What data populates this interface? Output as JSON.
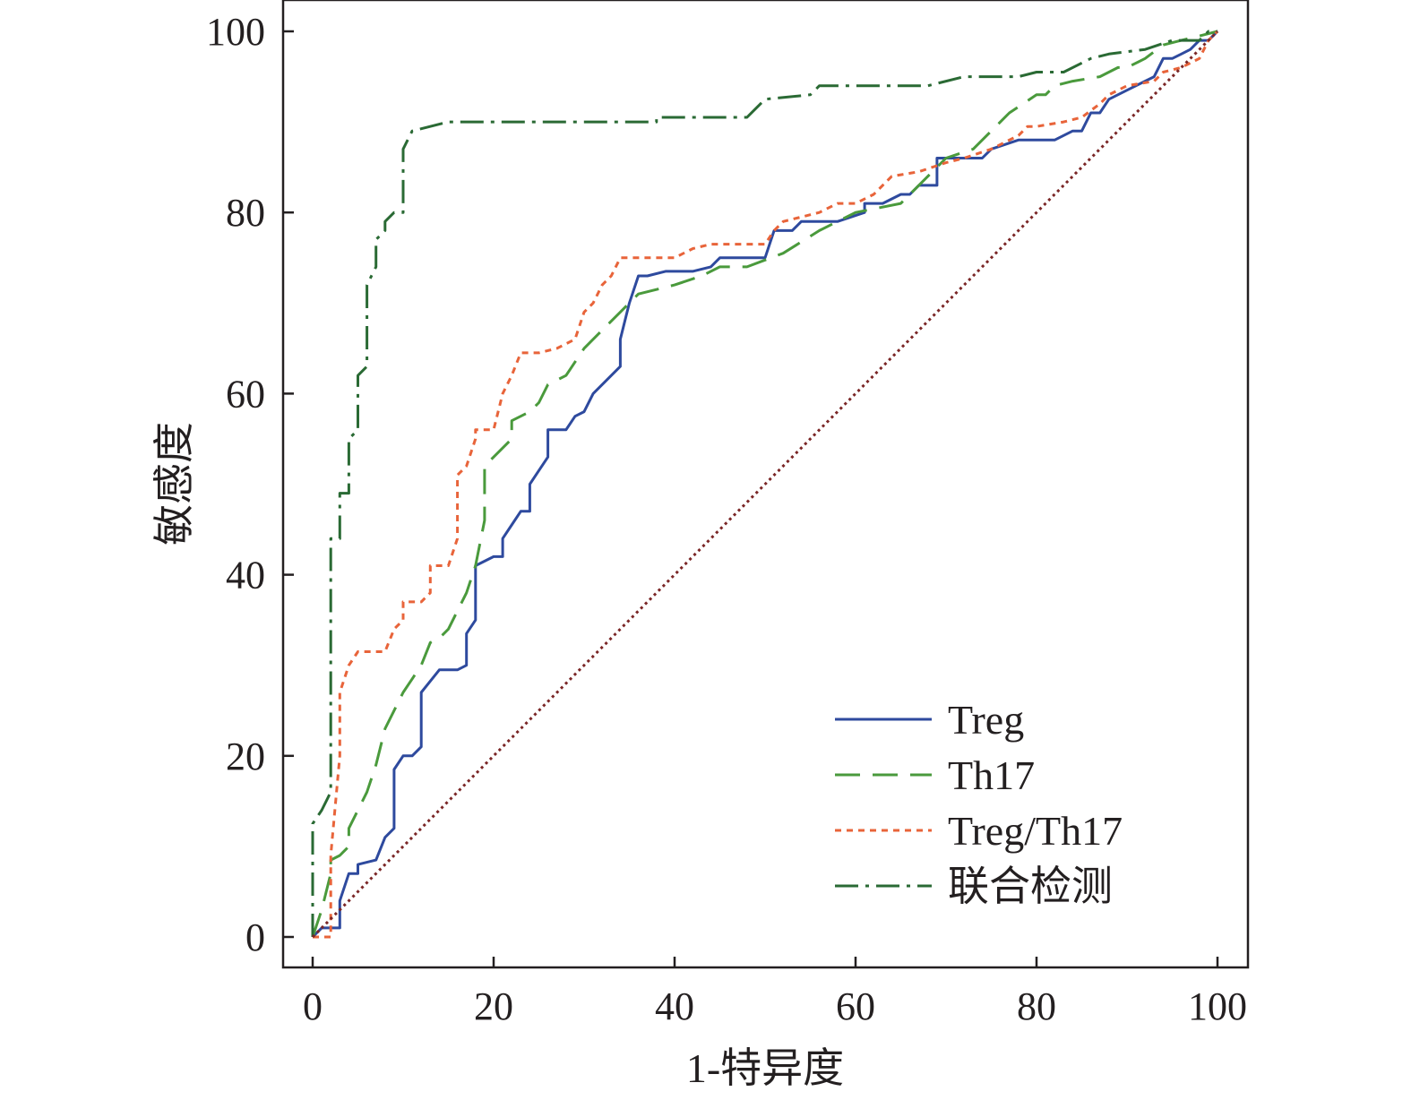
{
  "chart_data": {
    "type": "line",
    "xlabel": "1-特异度",
    "ylabel": "敏感度",
    "xlim": [
      0,
      100
    ],
    "ylim": [
      0,
      100
    ],
    "xticks": [
      0,
      20,
      40,
      60,
      80,
      100
    ],
    "yticks": [
      0,
      20,
      40,
      60,
      80,
      100
    ],
    "grid": false,
    "legend_position": "bottom-right",
    "series": [
      {
        "name": "Treg",
        "color": "#2e4a9e",
        "dash": "solid",
        "points": [
          [
            0,
            0
          ],
          [
            1,
            1
          ],
          [
            3,
            1
          ],
          [
            3,
            4
          ],
          [
            4,
            7
          ],
          [
            5,
            7
          ],
          [
            5,
            8
          ],
          [
            7,
            8.5
          ],
          [
            8,
            11
          ],
          [
            9,
            12
          ],
          [
            9,
            18.5
          ],
          [
            10,
            20
          ],
          [
            11,
            20
          ],
          [
            12,
            21
          ],
          [
            12,
            27
          ],
          [
            14,
            29.5
          ],
          [
            16,
            29.5
          ],
          [
            17,
            30
          ],
          [
            17,
            33.5
          ],
          [
            18,
            35
          ],
          [
            18,
            41
          ],
          [
            20,
            42
          ],
          [
            21,
            42
          ],
          [
            21,
            44
          ],
          [
            22,
            45.5
          ],
          [
            23,
            47
          ],
          [
            24,
            47
          ],
          [
            24,
            50
          ],
          [
            25,
            51.5
          ],
          [
            26,
            53
          ],
          [
            26,
            56
          ],
          [
            28,
            56
          ],
          [
            29,
            57.5
          ],
          [
            30,
            58
          ],
          [
            31,
            60
          ],
          [
            33,
            62
          ],
          [
            34,
            63
          ],
          [
            34,
            66
          ],
          [
            35,
            70
          ],
          [
            36,
            73
          ],
          [
            37,
            73
          ],
          [
            39,
            73.5
          ],
          [
            42,
            73.5
          ],
          [
            44,
            74
          ],
          [
            45,
            75
          ],
          [
            50,
            75
          ],
          [
            51,
            78
          ],
          [
            53,
            78
          ],
          [
            54,
            79
          ],
          [
            58,
            79
          ],
          [
            61,
            80
          ],
          [
            61,
            81
          ],
          [
            63,
            81
          ],
          [
            65,
            82
          ],
          [
            66,
            82
          ],
          [
            67,
            83
          ],
          [
            69,
            83
          ],
          [
            69,
            86
          ],
          [
            74,
            86
          ],
          [
            75,
            87
          ],
          [
            78,
            88
          ],
          [
            82,
            88
          ],
          [
            84,
            89
          ],
          [
            85,
            89
          ],
          [
            86,
            91
          ],
          [
            87,
            91
          ],
          [
            88,
            92.5
          ],
          [
            90,
            93.5
          ],
          [
            92,
            94.5
          ],
          [
            93,
            95
          ],
          [
            94,
            97
          ],
          [
            95,
            97
          ],
          [
            96,
            97.5
          ],
          [
            97,
            98
          ],
          [
            98,
            99
          ],
          [
            99,
            99
          ],
          [
            100,
            100
          ]
        ]
      },
      {
        "name": "Th17",
        "color": "#4a9a3c",
        "dash": "28 14",
        "points": [
          [
            0,
            0
          ],
          [
            1,
            3
          ],
          [
            2,
            7
          ],
          [
            2,
            8.5
          ],
          [
            3,
            9
          ],
          [
            4,
            10
          ],
          [
            4,
            12
          ],
          [
            5,
            14
          ],
          [
            6,
            16
          ],
          [
            7,
            19
          ],
          [
            8,
            23
          ],
          [
            9,
            25
          ],
          [
            10,
            27
          ],
          [
            11,
            28.5
          ],
          [
            12,
            30
          ],
          [
            13,
            32.5
          ],
          [
            14,
            33
          ],
          [
            15,
            34
          ],
          [
            16,
            36
          ],
          [
            17,
            38
          ],
          [
            18,
            41
          ],
          [
            19,
            46
          ],
          [
            19,
            52
          ],
          [
            20,
            53
          ],
          [
            22,
            55
          ],
          [
            22,
            57
          ],
          [
            24,
            58
          ],
          [
            25,
            59
          ],
          [
            26,
            61
          ],
          [
            28,
            62
          ],
          [
            30,
            65
          ],
          [
            32,
            67
          ],
          [
            34,
            69
          ],
          [
            36,
            71
          ],
          [
            40,
            72
          ],
          [
            43,
            73
          ],
          [
            45,
            74
          ],
          [
            48,
            74
          ],
          [
            52,
            75.5
          ],
          [
            56,
            78
          ],
          [
            60,
            80
          ],
          [
            65,
            81
          ],
          [
            70,
            86
          ],
          [
            73,
            87
          ],
          [
            77,
            91
          ],
          [
            80,
            93
          ],
          [
            81,
            93
          ],
          [
            82,
            94
          ],
          [
            84,
            94.5
          ],
          [
            87,
            95
          ],
          [
            89,
            96
          ],
          [
            90,
            96
          ],
          [
            92,
            97
          ],
          [
            94,
            98.5
          ],
          [
            96,
            99
          ],
          [
            98,
            99.5
          ],
          [
            100,
            100
          ]
        ]
      },
      {
        "name": "Treg/Th17",
        "color": "#e8643a",
        "dash": "7 6",
        "points": [
          [
            0,
            0
          ],
          [
            1,
            0
          ],
          [
            2,
            0
          ],
          [
            2,
            9
          ],
          [
            3,
            20
          ],
          [
            3,
            27
          ],
          [
            4,
            30
          ],
          [
            5,
            31.5
          ],
          [
            8,
            31.5
          ],
          [
            9,
            34
          ],
          [
            10,
            35
          ],
          [
            10,
            37
          ],
          [
            12,
            37
          ],
          [
            13,
            38
          ],
          [
            13,
            41
          ],
          [
            15,
            41
          ],
          [
            16,
            44
          ],
          [
            16,
            51
          ],
          [
            17,
            52
          ],
          [
            18,
            55
          ],
          [
            18,
            56
          ],
          [
            20,
            56
          ],
          [
            21,
            60
          ],
          [
            22,
            62
          ],
          [
            23,
            64.5
          ],
          [
            25,
            64.5
          ],
          [
            27,
            65
          ],
          [
            29,
            66
          ],
          [
            30,
            69
          ],
          [
            31,
            70
          ],
          [
            32,
            72
          ],
          [
            33,
            73
          ],
          [
            34,
            75
          ],
          [
            37,
            75
          ],
          [
            40,
            75
          ],
          [
            42,
            76
          ],
          [
            44,
            76.5
          ],
          [
            50,
            76.5
          ],
          [
            51,
            78
          ],
          [
            52,
            79
          ],
          [
            56,
            80
          ],
          [
            58,
            81
          ],
          [
            60,
            81
          ],
          [
            62,
            82
          ],
          [
            64,
            84
          ],
          [
            67,
            84.5
          ],
          [
            70,
            85.5
          ],
          [
            72,
            86
          ],
          [
            75,
            87
          ],
          [
            78,
            88.5
          ],
          [
            79,
            89.5
          ],
          [
            80,
            89.5
          ],
          [
            83,
            90
          ],
          [
            85,
            90.5
          ],
          [
            87,
            92
          ],
          [
            88,
            93
          ],
          [
            90,
            94
          ],
          [
            93,
            94.5
          ],
          [
            94,
            95.5
          ],
          [
            96,
            96
          ],
          [
            98,
            97
          ],
          [
            99,
            99
          ],
          [
            100,
            100
          ]
        ]
      },
      {
        "name": "联合检测",
        "color": "#2a6a34",
        "dash": "26 8 4 8",
        "points": [
          [
            0,
            0
          ],
          [
            0,
            12.5
          ],
          [
            1,
            14
          ],
          [
            2,
            16
          ],
          [
            2,
            44
          ],
          [
            3,
            44
          ],
          [
            3,
            49
          ],
          [
            4,
            49
          ],
          [
            4,
            55
          ],
          [
            5,
            56
          ],
          [
            5,
            62
          ],
          [
            6,
            63
          ],
          [
            6,
            72
          ],
          [
            7,
            74
          ],
          [
            7,
            77
          ],
          [
            8,
            78
          ],
          [
            8,
            79
          ],
          [
            9,
            80
          ],
          [
            10,
            80
          ],
          [
            10,
            87
          ],
          [
            11,
            89
          ],
          [
            15,
            90
          ],
          [
            20,
            90
          ],
          [
            30,
            90
          ],
          [
            38,
            90
          ],
          [
            38,
            90.5
          ],
          [
            48,
            90.5
          ],
          [
            50,
            92.5
          ],
          [
            55,
            93
          ],
          [
            56,
            94
          ],
          [
            60,
            94
          ],
          [
            68,
            94
          ],
          [
            72,
            95
          ],
          [
            78,
            95
          ],
          [
            80,
            95.5
          ],
          [
            83,
            95.5
          ],
          [
            86,
            97
          ],
          [
            88,
            97.5
          ],
          [
            92,
            98
          ],
          [
            95,
            99
          ],
          [
            98,
            99
          ],
          [
            99,
            100
          ],
          [
            100,
            100
          ]
        ]
      },
      {
        "name": "",
        "color": "#7a2626",
        "dash": "3 4",
        "points": [
          [
            0,
            0
          ],
          [
            100,
            100
          ]
        ]
      }
    ]
  }
}
